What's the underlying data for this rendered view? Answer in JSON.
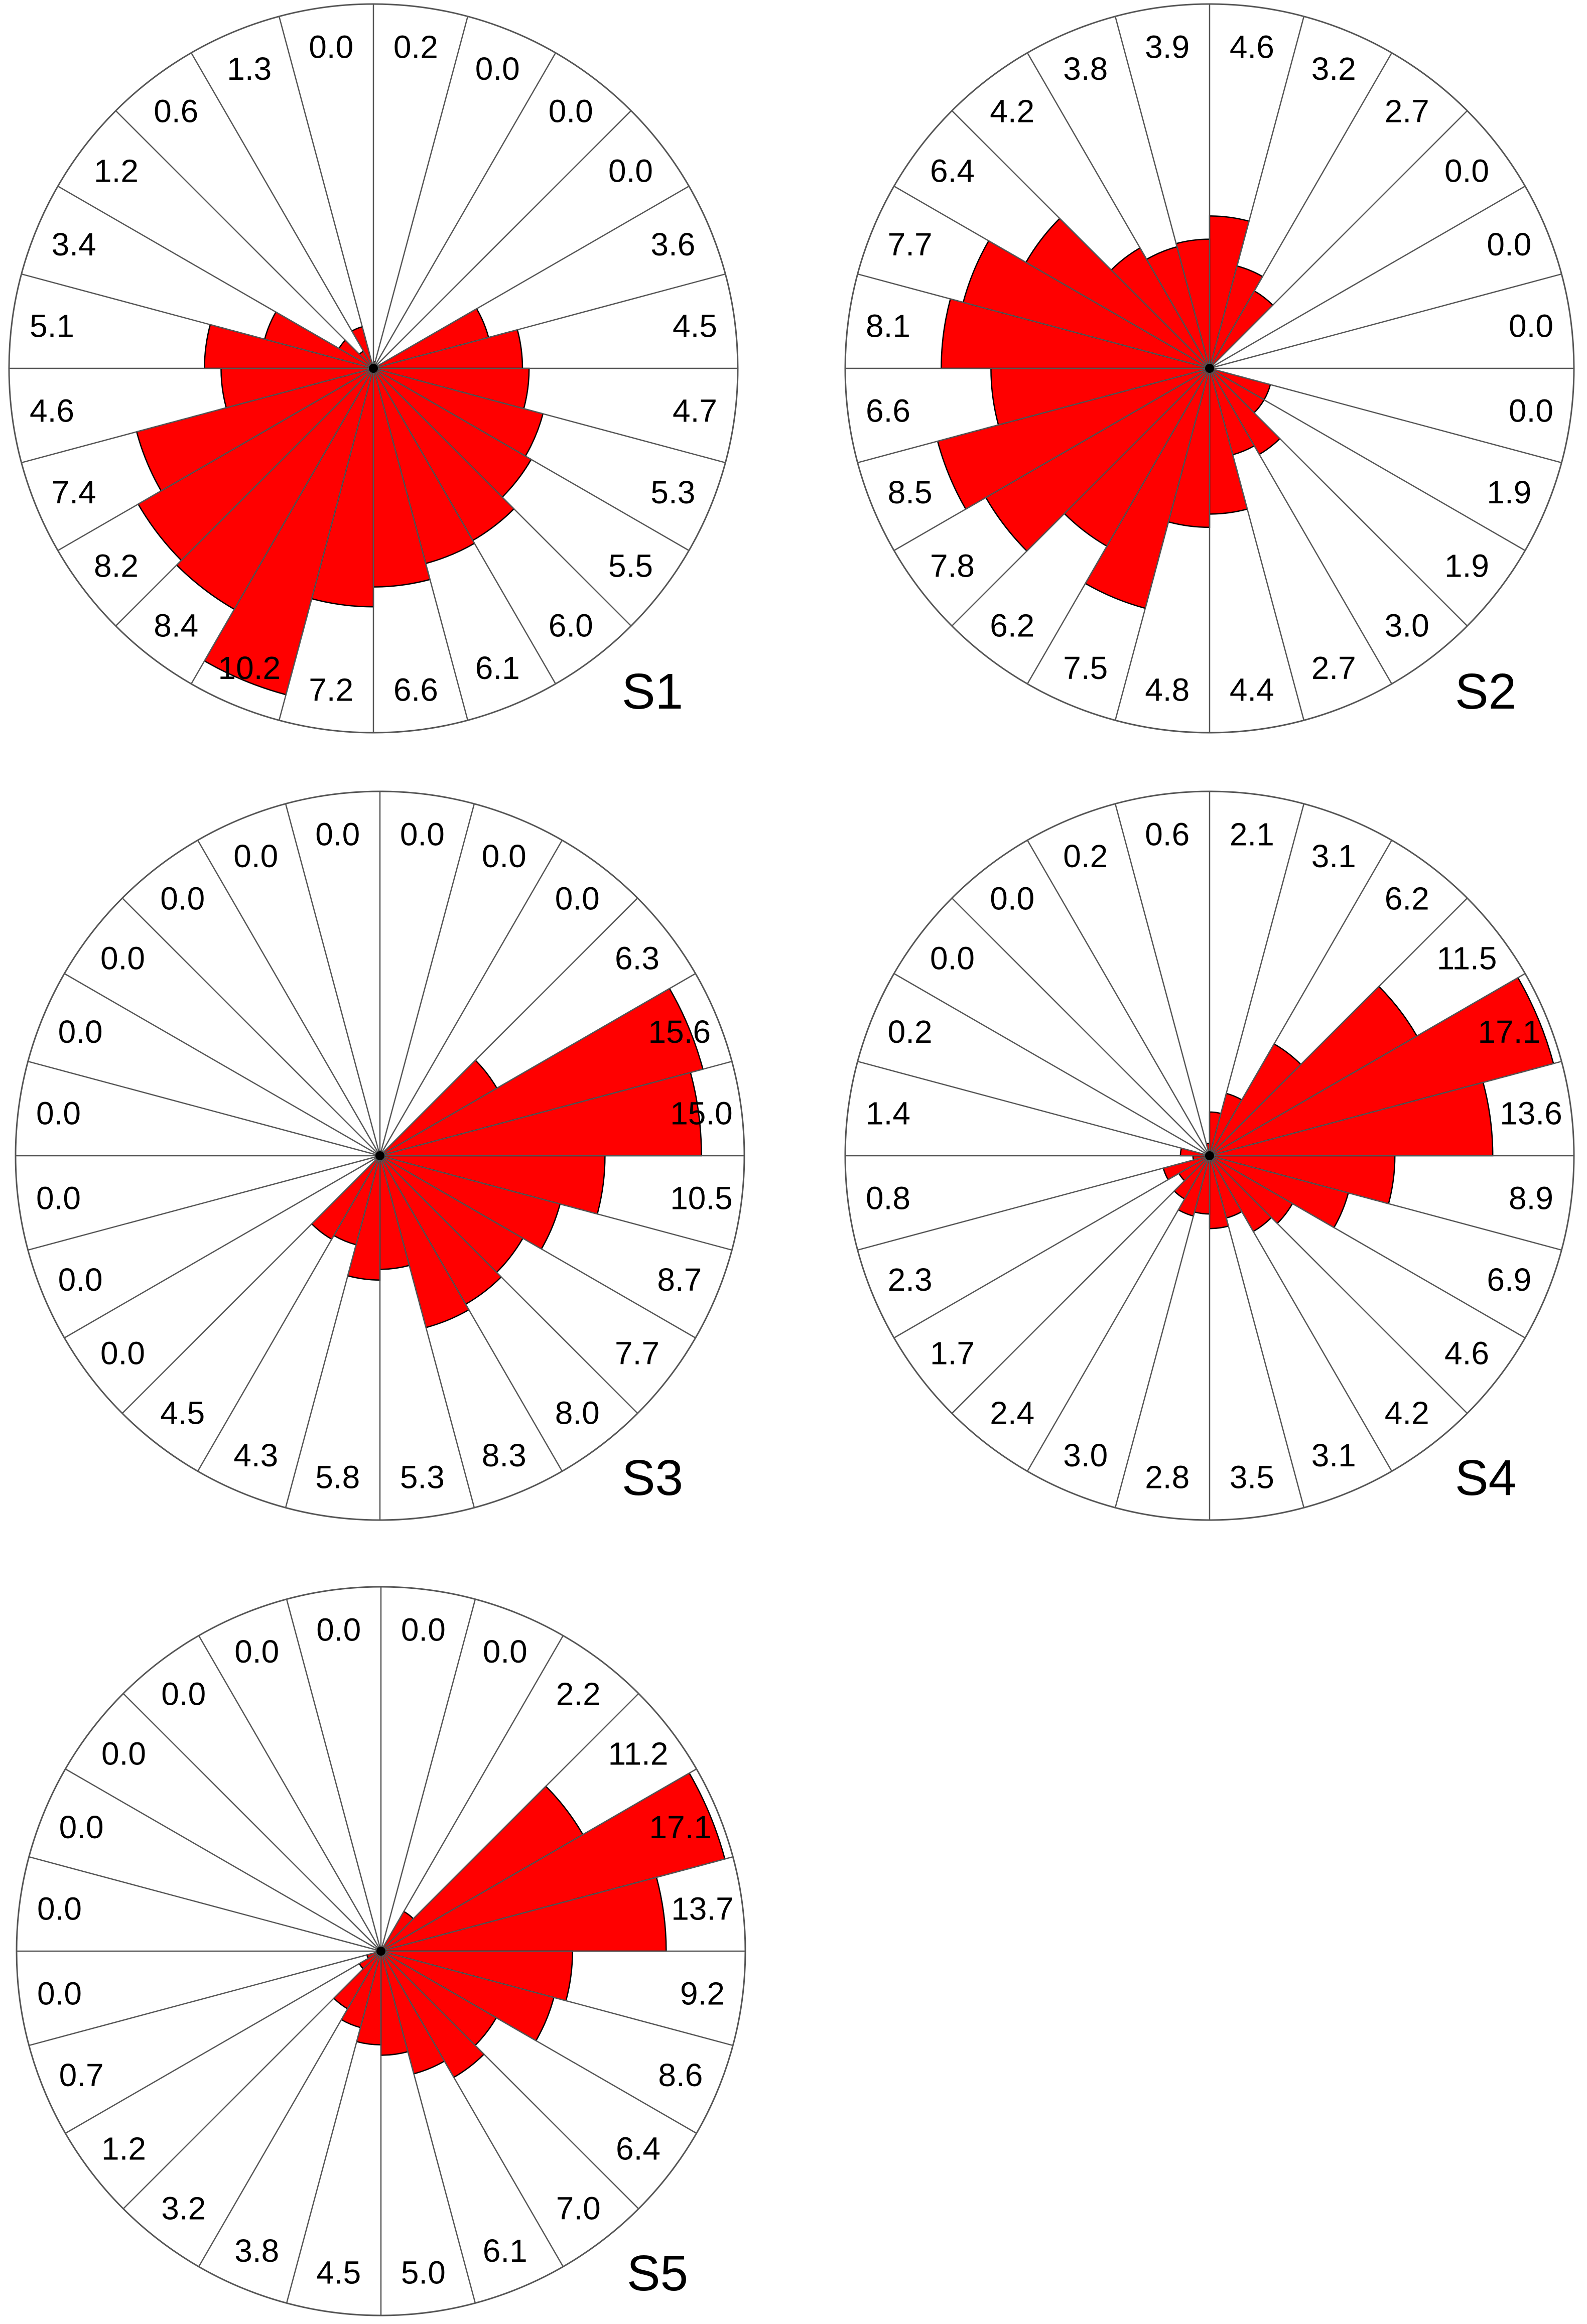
{
  "chart_data": [
    {
      "type": "rose",
      "label": "S1",
      "bin_count": 24,
      "start_direction": "north",
      "direction": "clockwise",
      "fill_color": "#ff0000",
      "outline_color": "#000000",
      "values": [
        0.2,
        0.0,
        0.0,
        0.0,
        3.6,
        4.5,
        4.7,
        5.3,
        5.5,
        6.0,
        6.1,
        6.6,
        7.2,
        10.2,
        8.4,
        8.2,
        7.4,
        4.6,
        5.1,
        3.4,
        1.2,
        0.6,
        1.3,
        0.0
      ],
      "value_labels": [
        "0.2",
        "0.0",
        "0.0",
        "0.0",
        "3.6",
        "4.5",
        "4.7",
        "5.3",
        "5.5",
        "6.0",
        "6.1",
        "6.6",
        "7.2",
        "10.2",
        "8.4",
        "8.2",
        "7.4",
        "4.6",
        "5.1",
        "3.4",
        "1.2",
        "0.6",
        "1.3",
        "0.0"
      ],
      "rmax": 11.0
    },
    {
      "type": "rose",
      "label": "S2",
      "bin_count": 24,
      "start_direction": "north",
      "direction": "clockwise",
      "fill_color": "#ff0000",
      "outline_color": "#000000",
      "values": [
        4.6,
        3.2,
        2.7,
        0.0,
        0.0,
        0.0,
        0.0,
        1.9,
        1.9,
        3.0,
        2.7,
        4.4,
        4.8,
        7.5,
        6.2,
        7.8,
        8.5,
        6.6,
        8.1,
        7.7,
        6.4,
        4.2,
        3.8,
        3.9
      ],
      "value_labels": [
        "4.6",
        "3.2",
        "2.7",
        "0.0",
        "0.0",
        "0.0",
        "0.0",
        "1.9",
        "1.9",
        "3.0",
        "2.7",
        "4.4",
        "4.8",
        "7.5",
        "6.2",
        "7.8",
        "8.5",
        "6.6",
        "8.1",
        "7.7",
        "6.4",
        "4.2",
        "3.8",
        "3.9"
      ],
      "rmax": 11.0
    },
    {
      "type": "rose",
      "label": "S3",
      "bin_count": 24,
      "start_direction": "north",
      "direction": "clockwise",
      "fill_color": "#ff0000",
      "outline_color": "#000000",
      "values": [
        0.0,
        0.0,
        0.0,
        6.3,
        15.6,
        15.0,
        10.5,
        8.7,
        7.7,
        8.0,
        8.3,
        5.3,
        5.8,
        4.3,
        4.5,
        0.0,
        0.0,
        0.0,
        0.0,
        0.0,
        0.0,
        0.0,
        0.0,
        0.0
      ],
      "value_labels": [
        "0.0",
        "0.0",
        "0.0",
        "6.3",
        "15.6",
        "15.0",
        "10.5",
        "8.7",
        "7.7",
        "8.0",
        "8.3",
        "5.3",
        "5.8",
        "4.3",
        "4.5",
        "0.0",
        "0.0",
        "0.0",
        "0.0",
        "0.0",
        "0.0",
        "0.0",
        "0.0",
        "0.0"
      ],
      "rmax": 17.0
    },
    {
      "type": "rose",
      "label": "S4",
      "bin_count": 24,
      "start_direction": "north",
      "direction": "clockwise",
      "fill_color": "#ff0000",
      "outline_color": "#000000",
      "values": [
        2.1,
        3.1,
        6.2,
        11.5,
        17.1,
        13.6,
        8.9,
        6.9,
        4.6,
        4.2,
        3.1,
        3.5,
        2.8,
        3.0,
        2.4,
        1.7,
        2.3,
        0.8,
        1.4,
        0.2,
        0.0,
        0.0,
        0.2,
        0.6
      ],
      "value_labels": [
        "2.1",
        "3.1",
        "6.2",
        "11.5",
        "17.1",
        "13.6",
        "8.9",
        "6.9",
        "4.6",
        "4.2",
        "3.1",
        "3.5",
        "2.8",
        "3.0",
        "2.4",
        "1.7",
        "2.3",
        "0.8",
        "1.4",
        "0.2",
        "0.0",
        "0.0",
        "0.2",
        "0.6"
      ],
      "rmax": 17.5
    },
    {
      "type": "rose",
      "label": "S5",
      "bin_count": 24,
      "start_direction": "north",
      "direction": "clockwise",
      "fill_color": "#ff0000",
      "outline_color": "#000000",
      "values": [
        0.0,
        0.0,
        2.2,
        11.2,
        17.1,
        13.7,
        9.2,
        8.6,
        6.4,
        7.0,
        6.1,
        5.0,
        4.5,
        3.8,
        3.2,
        1.2,
        0.7,
        0.0,
        0.0,
        0.0,
        0.0,
        0.0,
        0.0,
        0.0
      ],
      "value_labels": [
        "0.0",
        "0.0",
        "2.2",
        "11.2",
        "17.1",
        "13.7",
        "9.2",
        "8.6",
        "6.4",
        "7.0",
        "6.1",
        "5.0",
        "4.5",
        "3.8",
        "3.2",
        "1.2",
        "0.7",
        "0.0",
        "0.0",
        "0.0",
        "0.0",
        "0.0",
        "0.0",
        "0.0"
      ],
      "rmax": 17.5
    }
  ]
}
